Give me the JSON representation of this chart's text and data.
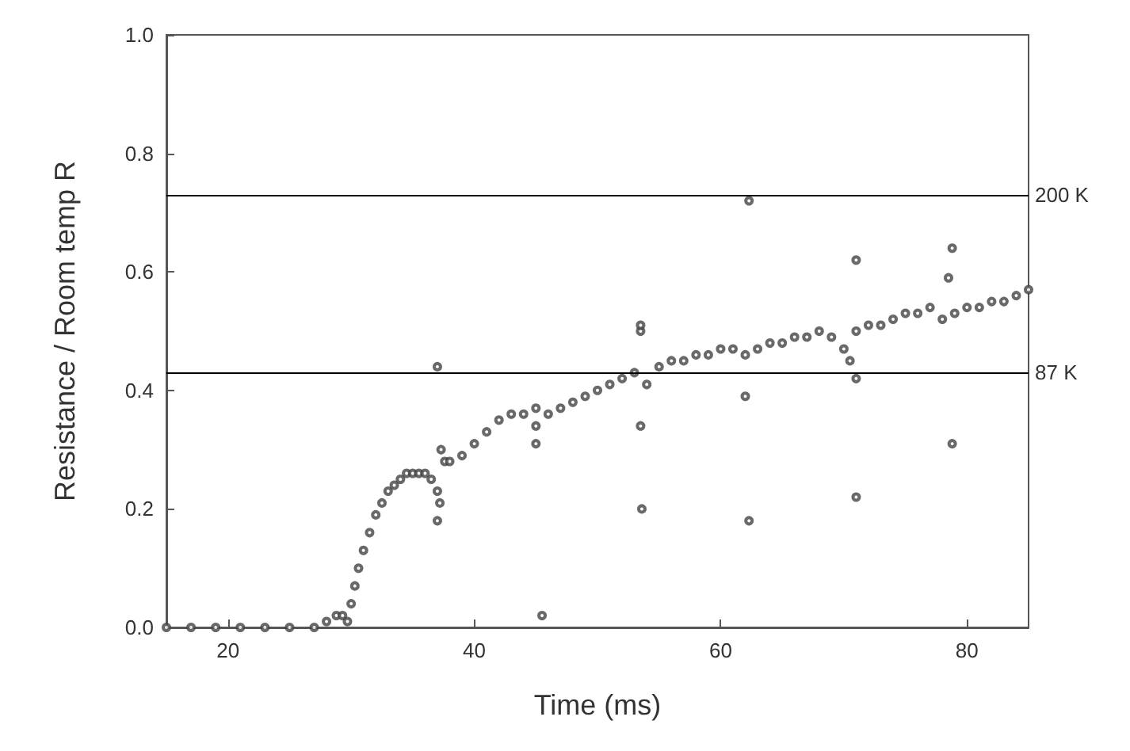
{
  "chart_data": {
    "type": "scatter",
    "xlabel": "Time (ms)",
    "ylabel": "Resistance / Room temp R",
    "xlim": [
      15,
      85
    ],
    "xticks": [
      20,
      40,
      60,
      80
    ],
    "ylim": [
      0,
      1.0
    ],
    "yticks": [
      {
        "value": 0,
        "label": "0.0"
      },
      0.2,
      0.4,
      0.6,
      0.8,
      {
        "value": 1,
        "label": "1.0"
      }
    ],
    "marker": "circle",
    "grid": false,
    "series": [
      {
        "color": "#444444",
        "x": [
          15,
          17,
          19,
          21,
          23,
          25,
          27,
          28,
          28.8,
          29.3,
          29.7,
          30,
          30.3,
          30.6,
          31,
          31.5,
          32,
          32.5,
          33,
          33.5,
          34,
          34.5,
          35,
          35.5,
          36,
          36.5,
          37,
          37.3,
          37.6,
          38,
          39,
          40,
          41,
          42,
          43,
          44,
          45,
          46,
          47,
          48,
          49,
          50,
          51,
          52,
          53,
          54,
          55,
          56,
          57,
          58,
          59,
          60,
          61,
          62,
          63,
          64,
          65,
          66,
          67,
          68,
          69,
          70,
          70.5,
          71,
          72,
          73,
          74,
          75,
          76,
          77,
          78,
          79,
          80,
          81,
          82,
          83,
          84,
          85,
          37,
          37,
          37.2,
          45.5,
          45,
          45,
          53.5,
          53.5,
          53.6,
          53.5,
          62.3,
          62.3,
          62,
          71,
          71,
          71,
          78.8,
          78.8,
          78.5
        ],
        "values": [
          0,
          0,
          0,
          0,
          0,
          0,
          0,
          0.01,
          0.02,
          0.02,
          0.01,
          0.04,
          0.07,
          0.1,
          0.13,
          0.16,
          0.19,
          0.21,
          0.23,
          0.24,
          0.25,
          0.26,
          0.26,
          0.26,
          0.26,
          0.25,
          0.23,
          0.3,
          0.28,
          0.28,
          0.29,
          0.31,
          0.33,
          0.35,
          0.36,
          0.36,
          0.37,
          0.36,
          0.37,
          0.38,
          0.39,
          0.4,
          0.41,
          0.42,
          0.43,
          0.41,
          0.44,
          0.45,
          0.45,
          0.46,
          0.46,
          0.47,
          0.47,
          0.46,
          0.47,
          0.48,
          0.48,
          0.49,
          0.49,
          0.5,
          0.49,
          0.47,
          0.45,
          0.5,
          0.51,
          0.51,
          0.52,
          0.53,
          0.53,
          0.54,
          0.52,
          0.53,
          0.54,
          0.54,
          0.55,
          0.55,
          0.56,
          0.57,
          0.44,
          0.18,
          0.21,
          0.02,
          0.34,
          0.31,
          0.5,
          0.51,
          0.2,
          0.34,
          0.72,
          0.18,
          0.39,
          0.62,
          0.22,
          0.42,
          0.64,
          0.31,
          0.59
        ]
      }
    ],
    "ref_lines": [
      {
        "axis": "y",
        "value": 0.73,
        "label": "200 K",
        "color": "#000000"
      },
      {
        "axis": "y",
        "value": 0.43,
        "label": "87 K",
        "color": "#000000"
      }
    ]
  }
}
